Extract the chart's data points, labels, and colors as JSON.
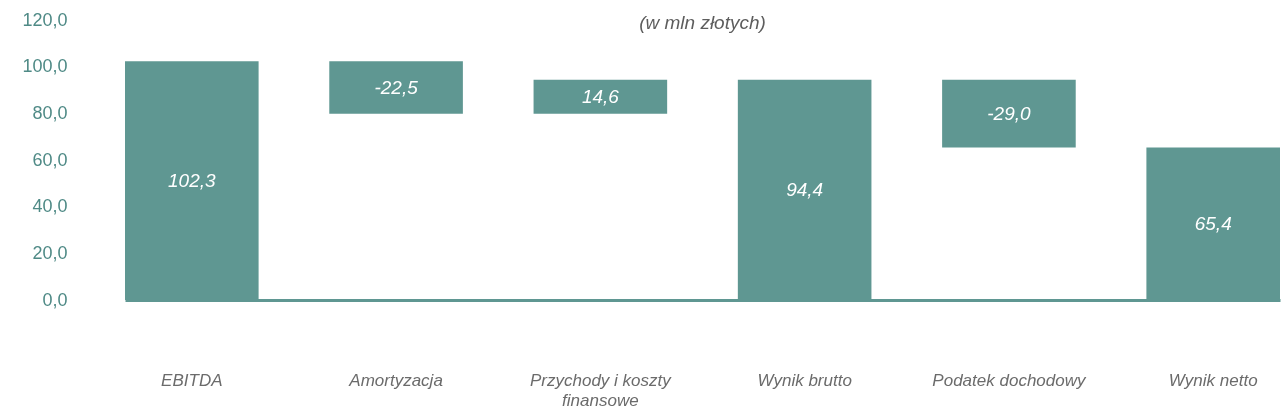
{
  "chart_data": {
    "type": "bar",
    "title": "(w mln złotych)",
    "categories": [
      "EBITDA",
      "Amortyzacja",
      "Przychody i koszty finansowe",
      "Wynik brutto",
      "Podatek dochodowy",
      "Wynik netto"
    ],
    "values": [
      102.3,
      -22.5,
      14.6,
      94.4,
      -29.0,
      65.4
    ],
    "base": [
      0,
      102.3,
      79.8,
      0,
      94.4,
      0
    ],
    "color": "#5f9792",
    "ylim": [
      0,
      120
    ],
    "yticks": [
      {
        "value": 0,
        "label": "0,0"
      },
      {
        "value": 20,
        "label": "20,0"
      },
      {
        "value": 40,
        "label": "40,0"
      },
      {
        "value": 60,
        "label": "60,0"
      },
      {
        "value": 80,
        "label": "80,0"
      },
      {
        "value": 100,
        "label": "100,0"
      },
      {
        "value": 120,
        "label": "120,0"
      }
    ],
    "value_labels": [
      "102,3",
      "-22,5",
      "14,6",
      "94,4",
      "-29,0",
      "65,4"
    ],
    "grid": false
  }
}
